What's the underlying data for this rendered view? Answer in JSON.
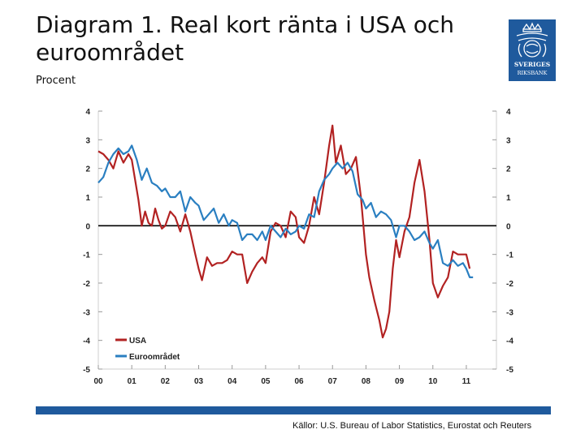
{
  "header": {
    "title": "Diagram 1. Real kort ränta i USA och euroområdet",
    "unit": "Procent"
  },
  "logo": {
    "line1": "SVERIGES",
    "line2": "RIKSBANK",
    "color": "#1f5a9d"
  },
  "footer": {
    "source": "Källor: U.S. Bureau of Labor Statistics, Eurostat och Reuters"
  },
  "chart_data": {
    "type": "line",
    "title": "Real kort ränta i USA och euroområdet",
    "ylabel": "Procent",
    "ylim": [
      -5,
      4
    ],
    "yticks": [
      4,
      3,
      2,
      1,
      0,
      -1,
      -2,
      -3,
      -4,
      -5
    ],
    "xlim": [
      2000.0,
      2011.9
    ],
    "xticks": [
      "00",
      "01",
      "02",
      "03",
      "04",
      "05",
      "06",
      "07",
      "08",
      "09",
      "10",
      "11"
    ],
    "legend_position": "bottom-left",
    "series": [
      {
        "name": "USA",
        "color": "#b22222",
        "x": [
          2000.0,
          2000.15,
          2000.3,
          2000.45,
          2000.6,
          2000.75,
          2000.9,
          2001.0,
          2001.1,
          2001.2,
          2001.3,
          2001.4,
          2001.5,
          2001.6,
          2001.7,
          2001.8,
          2001.9,
          2002.0,
          2002.15,
          2002.3,
          2002.45,
          2002.6,
          2002.75,
          2002.9,
          2003.0,
          2003.1,
          2003.25,
          2003.4,
          2003.55,
          2003.7,
          2003.85,
          2004.0,
          2004.15,
          2004.3,
          2004.45,
          2004.6,
          2004.75,
          2004.9,
          2005.0,
          2005.15,
          2005.3,
          2005.45,
          2005.6,
          2005.75,
          2005.9,
          2006.0,
          2006.15,
          2006.3,
          2006.45,
          2006.6,
          2006.75,
          2006.9,
          2007.0,
          2007.1,
          2007.25,
          2007.4,
          2007.55,
          2007.7,
          2007.85,
          2008.0,
          2008.1,
          2008.25,
          2008.4,
          2008.5,
          2008.6,
          2008.7,
          2008.8,
          2008.9,
          2009.0,
          2009.15,
          2009.3,
          2009.45,
          2009.6,
          2009.75,
          2009.9,
          2010.0,
          2010.15,
          2010.3,
          2010.45,
          2010.6,
          2010.75,
          2010.9,
          2011.0,
          2011.1
        ],
        "values": [
          2.6,
          2.5,
          2.3,
          2.0,
          2.6,
          2.2,
          2.5,
          2.3,
          1.6,
          0.9,
          0.0,
          0.5,
          0.1,
          0.0,
          0.6,
          0.2,
          -0.1,
          0.0,
          0.5,
          0.3,
          -0.2,
          0.4,
          -0.2,
          -1.0,
          -1.5,
          -1.9,
          -1.1,
          -1.4,
          -1.3,
          -1.3,
          -1.2,
          -0.9,
          -1.0,
          -1.0,
          -2.0,
          -1.6,
          -1.3,
          -1.1,
          -1.3,
          -0.2,
          0.1,
          0.0,
          -0.4,
          0.5,
          0.3,
          -0.4,
          -0.6,
          0.0,
          1.0,
          0.4,
          1.5,
          2.8,
          3.5,
          2.2,
          2.8,
          1.8,
          2.0,
          2.4,
          1.0,
          -1.0,
          -1.8,
          -2.6,
          -3.3,
          -3.9,
          -3.6,
          -3.0,
          -1.5,
          -0.5,
          -1.1,
          -0.2,
          0.3,
          1.5,
          2.3,
          1.2,
          -0.5,
          -2.0,
          -2.5,
          -2.1,
          -1.8,
          -0.9,
          -1.0,
          -1.0,
          -1.0,
          -1.5
        ]
      },
      {
        "name": "Euroområdet",
        "color": "#2a7fc1",
        "x": [
          2000.0,
          2000.15,
          2000.3,
          2000.45,
          2000.6,
          2000.75,
          2000.9,
          2001.0,
          2001.15,
          2001.3,
          2001.45,
          2001.6,
          2001.75,
          2001.9,
          2002.0,
          2002.15,
          2002.3,
          2002.45,
          2002.6,
          2002.75,
          2002.9,
          2003.0,
          2003.15,
          2003.3,
          2003.45,
          2003.6,
          2003.75,
          2003.9,
          2004.0,
          2004.15,
          2004.3,
          2004.45,
          2004.6,
          2004.75,
          2004.9,
          2005.0,
          2005.15,
          2005.3,
          2005.45,
          2005.6,
          2005.75,
          2005.9,
          2006.0,
          2006.15,
          2006.3,
          2006.45,
          2006.6,
          2006.75,
          2006.9,
          2007.0,
          2007.15,
          2007.3,
          2007.45,
          2007.6,
          2007.75,
          2007.9,
          2008.0,
          2008.15,
          2008.3,
          2008.45,
          2008.6,
          2008.75,
          2008.9,
          2009.0,
          2009.15,
          2009.3,
          2009.45,
          2009.6,
          2009.75,
          2009.9,
          2010.0,
          2010.15,
          2010.3,
          2010.45,
          2010.6,
          2010.75,
          2010.9,
          2011.0,
          2011.1,
          2011.2
        ],
        "values": [
          1.5,
          1.7,
          2.2,
          2.5,
          2.7,
          2.5,
          2.6,
          2.8,
          2.3,
          1.6,
          2.0,
          1.5,
          1.4,
          1.2,
          1.3,
          1.0,
          1.0,
          1.2,
          0.5,
          1.0,
          0.8,
          0.7,
          0.2,
          0.4,
          0.6,
          0.1,
          0.4,
          0.0,
          0.2,
          0.1,
          -0.5,
          -0.3,
          -0.3,
          -0.5,
          -0.2,
          -0.5,
          0.0,
          -0.2,
          -0.4,
          -0.1,
          -0.3,
          -0.2,
          0.0,
          -0.1,
          0.4,
          0.3,
          1.2,
          1.6,
          1.8,
          2.0,
          2.2,
          2.0,
          2.2,
          1.9,
          1.1,
          0.9,
          0.6,
          0.8,
          0.3,
          0.5,
          0.4,
          0.2,
          -0.4,
          0.0,
          0.0,
          -0.2,
          -0.5,
          -0.4,
          -0.2,
          -0.6,
          -0.8,
          -0.5,
          -1.3,
          -1.4,
          -1.2,
          -1.4,
          -1.3,
          -1.5,
          -1.8,
          -1.8
        ]
      }
    ]
  }
}
